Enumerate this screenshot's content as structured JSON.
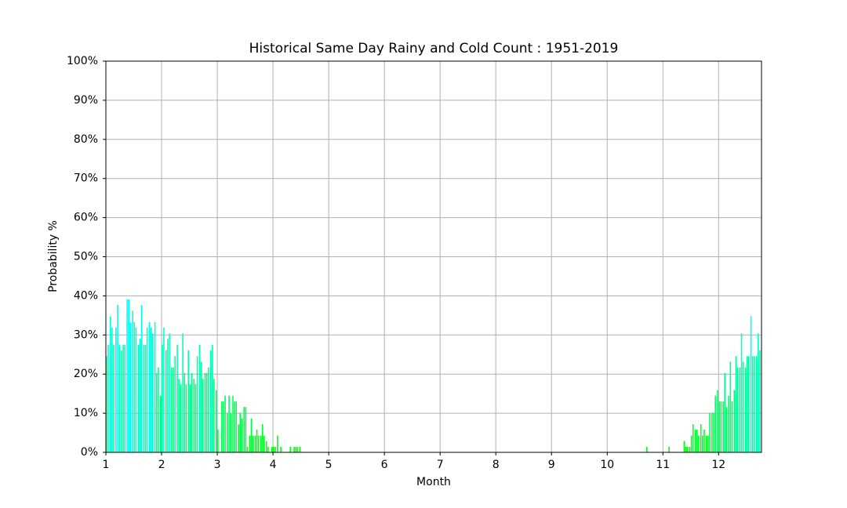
{
  "chart_data": {
    "type": "bar",
    "title": "Historical Same Day Rainy and Cold Count : 1951-2019",
    "x_label": "Month",
    "y_label": "Probability %",
    "colormap": [
      "#00ff00",
      "#00ffff"
    ],
    "grid": true,
    "xlim": [
      1,
      12.77
    ],
    "xticks": [
      1,
      2,
      3,
      4,
      5,
      6,
      7,
      8,
      9,
      10,
      11,
      12
    ],
    "ylim": [
      0,
      100
    ],
    "yticks": [
      {
        "value": 0,
        "label": "0%"
      },
      {
        "value": 10,
        "label": "10%"
      },
      {
        "value": 20,
        "label": "20%"
      },
      {
        "value": 30,
        "label": "30%"
      },
      {
        "value": 40,
        "label": "40%"
      },
      {
        "value": 50,
        "label": "50%"
      },
      {
        "value": 60,
        "label": "60%"
      },
      {
        "value": 70,
        "label": "70%"
      },
      {
        "value": 80,
        "label": "80%"
      },
      {
        "value": 90,
        "label": "90%"
      },
      {
        "value": 100,
        "label": "100%"
      }
    ],
    "x": [
      1.0,
      1.03,
      1.07,
      1.1,
      1.13,
      1.17,
      1.2,
      1.23,
      1.27,
      1.3,
      1.33,
      1.37,
      1.4,
      1.43,
      1.47,
      1.5,
      1.53,
      1.57,
      1.6,
      1.63,
      1.67,
      1.7,
      1.73,
      1.77,
      1.8,
      1.83,
      1.87,
      1.9,
      1.93,
      1.97,
      2.0,
      2.03,
      2.07,
      2.1,
      2.13,
      2.17,
      2.2,
      2.23,
      2.27,
      2.3,
      2.33,
      2.37,
      2.4,
      2.43,
      2.47,
      2.5,
      2.53,
      2.57,
      2.6,
      2.63,
      2.67,
      2.7,
      2.73,
      2.77,
      2.8,
      2.83,
      2.87,
      2.9,
      2.93,
      2.97,
      3.0,
      3.03,
      3.07,
      3.1,
      3.13,
      3.17,
      3.2,
      3.23,
      3.27,
      3.3,
      3.33,
      3.37,
      3.4,
      3.43,
      3.47,
      3.5,
      3.53,
      3.57,
      3.6,
      3.63,
      3.67,
      3.7,
      3.73,
      3.77,
      3.8,
      3.83,
      3.87,
      3.9,
      3.93,
      3.97,
      4.0,
      4.03,
      4.07,
      4.1,
      4.13,
      4.17,
      4.2,
      4.23,
      4.27,
      4.3,
      4.33,
      4.37,
      4.4,
      4.43,
      4.47,
      10.7,
      11.1,
      11.37,
      11.4,
      11.43,
      11.47,
      11.5,
      11.53,
      11.57,
      11.6,
      11.63,
      11.67,
      11.7,
      11.73,
      11.77,
      11.8,
      11.83,
      11.87,
      11.9,
      11.93,
      11.97,
      12.0,
      12.03,
      12.07,
      12.1,
      12.13,
      12.17,
      12.2,
      12.23,
      12.27,
      12.3,
      12.33,
      12.37,
      12.4,
      12.43,
      12.47,
      12.5,
      12.53,
      12.57,
      12.6,
      12.63,
      12.67,
      12.7,
      12.73,
      12.77
    ],
    "values": [
      24.6,
      27.5,
      34.8,
      31.9,
      27.5,
      31.9,
      37.7,
      27.5,
      26.1,
      27.5,
      27.5,
      39.1,
      39.1,
      33.3,
      36.2,
      33.3,
      31.9,
      27.5,
      29,
      37.7,
      27.5,
      27.5,
      31.9,
      33.3,
      31.9,
      30.4,
      33.3,
      20.3,
      21.7,
      14.5,
      27.5,
      31.9,
      26.1,
      29,
      30.4,
      21.7,
      21.7,
      24.6,
      27.5,
      18.8,
      17.4,
      30.4,
      20.3,
      17.4,
      26.1,
      17.4,
      20.3,
      18.8,
      17.4,
      24.6,
      27.5,
      23.2,
      18.8,
      20.3,
      20.3,
      21.7,
      26.1,
      27.5,
      18.8,
      15.9,
      5.8,
      0,
      13,
      13,
      14.5,
      10.1,
      14.5,
      10.1,
      14.5,
      13,
      13,
      7.2,
      10.1,
      8.7,
      11.6,
      11.6,
      1.4,
      4.3,
      8.7,
      4.3,
      4.3,
      5.8,
      4.3,
      4.3,
      7.2,
      4.3,
      2.9,
      1.4,
      0,
      1.4,
      1.4,
      1.4,
      4.3,
      0,
      1.4,
      0,
      0,
      0,
      0,
      1.4,
      0,
      1.4,
      1.4,
      1.4,
      1.4,
      1.4,
      1.4,
      2.9,
      1.4,
      1.4,
      1.4,
      4.3,
      7.2,
      5.8,
      5.8,
      4.3,
      7.2,
      4.3,
      5.8,
      4.3,
      4.3,
      10.1,
      10.1,
      10.1,
      14.5,
      15.9,
      13,
      13,
      13,
      20.3,
      11.6,
      14.5,
      23.2,
      13,
      15.9,
      24.6,
      21.7,
      21.7,
      30.4,
      23.2,
      21.7,
      24.6,
      24.6,
      34.8,
      24.6,
      24.6,
      24.6,
      30.4,
      26.1,
      21.7
    ]
  }
}
